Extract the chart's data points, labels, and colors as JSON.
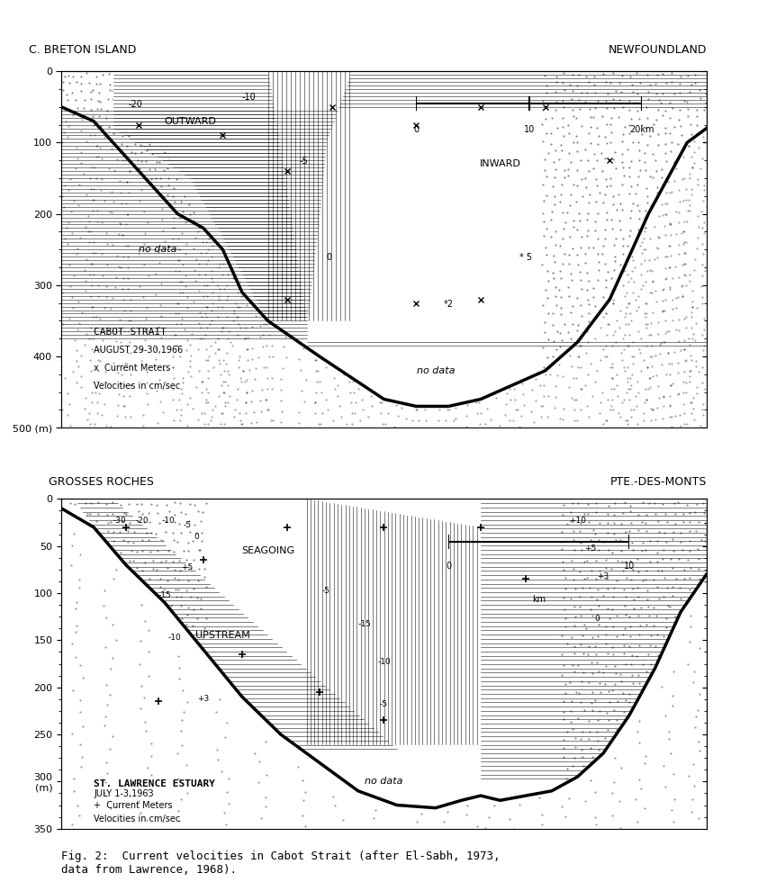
{
  "fig1": {
    "title_left": "C. BRETON ISLAND",
    "title_right": "NEWFOUNDLAND",
    "ylim": [
      500,
      0
    ],
    "ylabel_ticks": [
      0,
      100,
      200,
      300,
      400,
      500
    ],
    "ytick_labels": [
      "0",
      "100",
      "200",
      "300",
      "400",
      "500 (m)"
    ],
    "box_label1": "CABOT STRAIT",
    "box_label2": "AUGUST 29-30,1966",
    "box_label3": "x  Current Meters",
    "box_label4": "Velocities in cm/sec",
    "scale_bar_label": "0    10    20km",
    "outward_label": "OUTWARD",
    "inward_label": "INWARD",
    "no_data1": "no data",
    "no_data2": "no data",
    "contour_labels_outward": [
      "-20",
      "-10",
      "-5"
    ],
    "contour_labels_inward": [
      "5"
    ],
    "contour_labels_bottom": [
      "0",
      "5"
    ]
  },
  "fig2": {
    "title_left": "GROSSES ROCHES",
    "title_right": "PTE.-DES-MONTS",
    "ylim": [
      350,
      0
    ],
    "ylabel_ticks": [
      0,
      50,
      100,
      150,
      200,
      250,
      300,
      350
    ],
    "ytick_labels": [
      "0",
      "50",
      "100",
      "150",
      "200",
      "250",
      "300\n(m)",
      "350"
    ],
    "box_label1": "ST. LAWRENCE ESTUARY",
    "box_label2": "JULY 1-3,1963",
    "box_label3": "+ Current Meters",
    "box_label4": "Velocities in cm/sec",
    "scale_bar_label": "0       10\n           km",
    "seagoing_label": "SEAGOING",
    "upstream_label": "UPSTREAM",
    "no_data": "no data",
    "contour_labels_left": [
      "-30",
      "-20",
      "-10",
      "-5",
      "0"
    ],
    "contour_labels_mid": [
      "+5",
      "-15",
      "-10",
      "-5"
    ],
    "contour_labels_right": [
      "+10",
      "+5",
      "+3",
      "0"
    ]
  },
  "caption": "Fig. 2:  Current velocities in Cabot Strait (after El-Sabh, 1973,\ndata from Lawrence, 1968)."
}
